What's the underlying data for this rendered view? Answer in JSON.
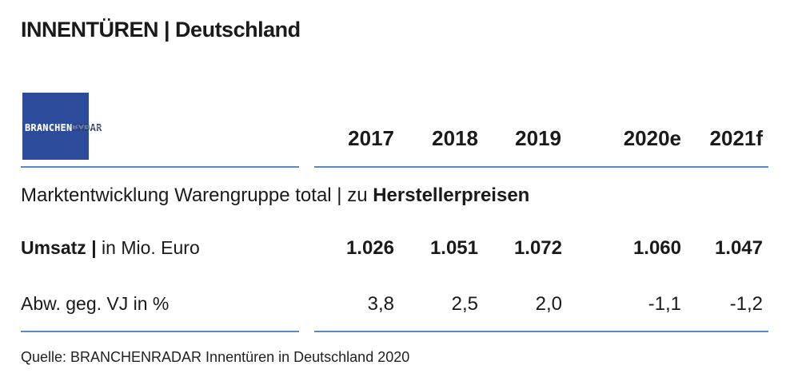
{
  "title": "INNENTÜREN | Deutschland",
  "logo": {
    "text_part1": "BRANCHEN",
    "text_part2": "RADAR",
    "color": "#2c4b9b"
  },
  "years": [
    "2017",
    "2018",
    "2019",
    "2020e",
    "2021f"
  ],
  "subtitle": {
    "prefix": "Marktentwicklung Warengruppe total | zu ",
    "emphasis": "Herstellerpreisen"
  },
  "rows": [
    {
      "label_bold": "Umsatz |",
      "label_rest": " in Mio. Euro",
      "values": [
        "1.026",
        "1.051",
        "1.072",
        "1.060",
        "1.047"
      ]
    },
    {
      "label_bold": "",
      "label_rest": "Abw. geg. VJ in %",
      "values": [
        "3,8",
        "2,5",
        "2,0",
        "-1,1",
        "-1,2"
      ]
    }
  ],
  "source": "Quelle: BRANCHENRADAR Innentüren in Deutschland 2020",
  "accent_color": "#5b86c9"
}
